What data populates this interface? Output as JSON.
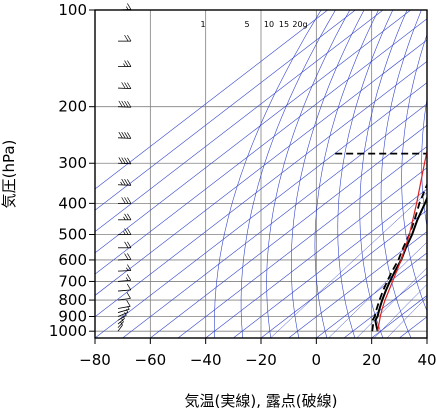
{
  "chart_data": {
    "type": "skew-t",
    "xlabel": "気温(実線), 露点(破線)",
    "ylabel": "気圧(hPa)",
    "xlim": [
      -80,
      40
    ],
    "ylim": [
      1050,
      100
    ],
    "y_scale": "log",
    "x_ticks": [
      -80,
      -60,
      -40,
      -20,
      0,
      20,
      40
    ],
    "x_tick_labels": [
      "−80",
      "−60",
      "−40",
      "−20",
      "0",
      "20",
      "40"
    ],
    "y_ticks": [
      100,
      200,
      300,
      400,
      500,
      600,
      700,
      800,
      900,
      1000
    ],
    "y_tick_labels": [
      "100",
      "200",
      "300",
      "400",
      "500",
      "600",
      "700",
      "800",
      "900",
      "1000"
    ],
    "mixing_ratio_labels": [
      "1",
      "5",
      "10",
      "15",
      "20g"
    ],
    "grid": true,
    "colors": {
      "frame": "#000000",
      "isolines": "#3344cc",
      "parcel": "#dd2222",
      "sounding": "#000000",
      "gridline": "#808080"
    },
    "series": [
      {
        "style": "solid",
        "points": [
          [
            1000,
            19
          ],
          [
            950,
            15
          ],
          [
            925,
            13
          ],
          [
            900,
            12
          ],
          [
            850,
            9
          ],
          [
            800,
            6
          ],
          [
            750,
            3
          ],
          [
            700,
            0
          ],
          [
            650,
            -3
          ],
          [
            600,
            -6
          ],
          [
            550,
            -10
          ],
          [
            500,
            -14
          ],
          [
            450,
            -19
          ],
          [
            400,
            -24
          ],
          [
            350,
            -30
          ],
          [
            300,
            -36
          ],
          [
            250,
            -45
          ],
          [
            225,
            -51
          ],
          [
            200,
            -57
          ],
          [
            175,
            -63
          ],
          [
            150,
            -68
          ],
          [
            130,
            -71
          ],
          [
            120,
            -72
          ],
          [
            110,
            -71
          ],
          [
            100,
            -70
          ]
        ]
      },
      {
        "style": "dashed",
        "points": [
          [
            1000,
            17
          ],
          [
            950,
            14
          ],
          [
            925,
            12
          ],
          [
            900,
            11
          ],
          [
            850,
            8
          ],
          [
            800,
            5
          ],
          [
            750,
            2
          ],
          [
            700,
            -1
          ],
          [
            650,
            -4
          ],
          [
            600,
            -7
          ],
          [
            550,
            -11
          ],
          [
            500,
            -15
          ],
          [
            450,
            -20
          ],
          [
            400,
            -26
          ],
          [
            350,
            -32
          ],
          [
            300,
            -38
          ],
          [
            280,
            -40
          ],
          [
            280,
            -80
          ]
        ]
      },
      {
        "style": "parcel",
        "points": [
          [
            1000,
            19
          ],
          [
            900,
            13
          ],
          [
            850,
            10
          ],
          [
            800,
            7
          ],
          [
            700,
            1
          ],
          [
            600,
            -6
          ],
          [
            500,
            -15
          ],
          [
            400,
            -27
          ],
          [
            300,
            -43
          ],
          [
            250,
            -53
          ],
          [
            200,
            -65
          ],
          [
            170,
            -74
          ]
        ]
      }
    ],
    "wind_barbs": [
      [
        1000,
        200,
        8
      ],
      [
        975,
        205,
        7
      ],
      [
        950,
        210,
        6
      ],
      [
        925,
        220,
        5
      ],
      [
        900,
        230,
        5
      ],
      [
        875,
        240,
        8
      ],
      [
        850,
        250,
        10
      ],
      [
        800,
        255,
        12
      ],
      [
        750,
        260,
        14
      ],
      [
        700,
        260,
        16
      ],
      [
        650,
        265,
        18
      ],
      [
        600,
        265,
        20
      ],
      [
        550,
        270,
        22
      ],
      [
        500,
        270,
        25
      ],
      [
        450,
        270,
        28
      ],
      [
        400,
        270,
        32
      ],
      [
        350,
        275,
        36
      ],
      [
        300,
        275,
        40
      ],
      [
        250,
        275,
        44
      ],
      [
        200,
        275,
        40
      ],
      [
        175,
        275,
        34
      ],
      [
        150,
        270,
        28
      ],
      [
        125,
        270,
        22
      ],
      [
        100,
        265,
        18
      ]
    ]
  }
}
